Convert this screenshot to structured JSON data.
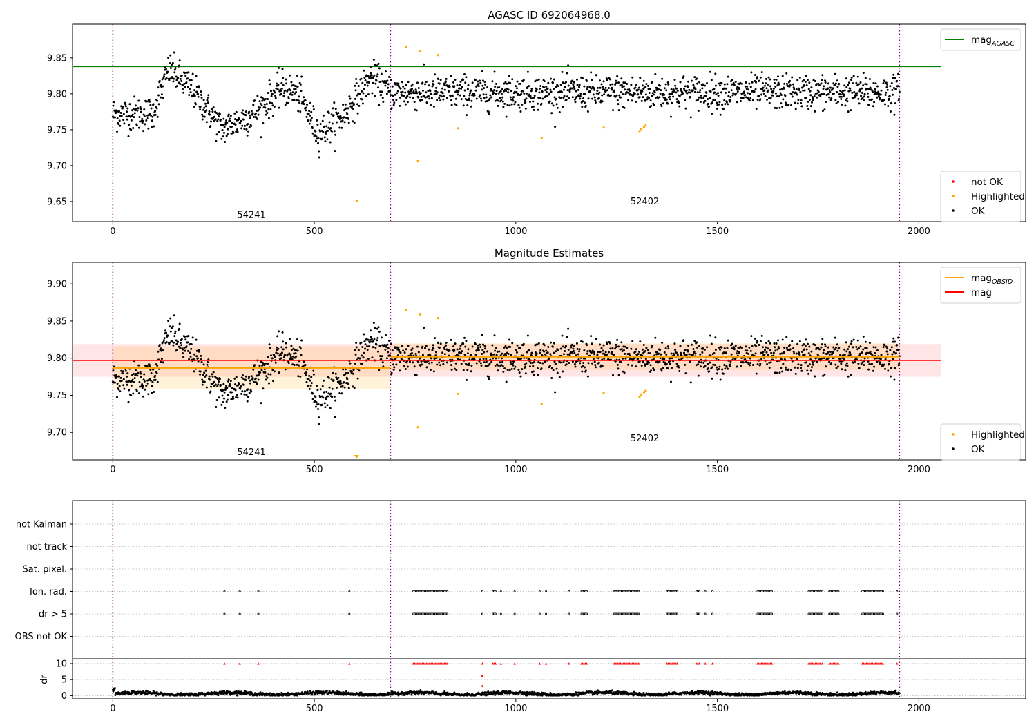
{
  "chart_data": [
    {
      "id": "p1",
      "type": "scatter",
      "title": "AGASC ID 692064968.0",
      "xlim": [
        -100,
        2265
      ],
      "ylim": [
        9.622,
        9.897
      ],
      "yticks": [
        9.65,
        9.7,
        9.75,
        9.8,
        9.85
      ],
      "ytick_labels": [
        "9.65",
        "9.70",
        "9.75",
        "9.80",
        "9.85"
      ],
      "xticks": [
        0,
        500,
        1000,
        1500,
        2000
      ],
      "xtick_labels": [
        "0",
        "500",
        "1000",
        "1500",
        "2000"
      ],
      "obs_boundaries": [
        0,
        689,
        1952
      ],
      "obsids": [
        {
          "label": "54241",
          "x": 344,
          "y": 9.631
        },
        {
          "label": "52402",
          "x": 1320,
          "y": 9.65
        }
      ],
      "hlines": [
        {
          "name": "mag_AGASC",
          "value": 9.838,
          "x0": -100,
          "x1": 2055,
          "color": "#008000"
        }
      ],
      "legend_upper": {
        "placement": "top-right",
        "entries": [
          {
            "label": "mag",
            "sub": "AGASC",
            "color": "#008000",
            "kind": "line"
          }
        ]
      },
      "legend_lower": {
        "placement": "bottom-right",
        "entries": [
          {
            "label": "not OK",
            "color": "#ff0000",
            "kind": "dot"
          },
          {
            "label": "Highlighted",
            "color": "#ffa500",
            "kind": "dot"
          },
          {
            "label": "OK",
            "color": "#000000",
            "kind": "dot"
          }
        ]
      },
      "highlighted": {
        "x": [
          605,
          727,
          763,
          807,
          757,
          857,
          1064,
          1218,
          1307,
          1311,
          1318,
          1322
        ],
        "y": [
          9.651,
          9.865,
          9.859,
          9.854,
          9.707,
          9.752,
          9.738,
          9.753,
          9.748,
          9.751,
          9.754,
          9.756
        ]
      },
      "ok_series": [
        {
          "x": [
            0,
            100
          ],
          "y": [
            9.772,
            9.772
          ]
        },
        {
          "x": [
            100,
            140
          ],
          "y": [
            9.776,
            9.834
          ]
        },
        {
          "x": [
            140,
            200
          ],
          "y": [
            9.834,
            9.804
          ]
        },
        {
          "x": [
            200,
            270
          ],
          "y": [
            9.804,
            9.751
          ]
        },
        {
          "x": [
            270,
            350
          ],
          "y": [
            9.751,
            9.772
          ]
        },
        {
          "x": [
            350,
            420
          ],
          "y": [
            9.772,
            9.808
          ]
        },
        {
          "x": [
            420,
            460
          ],
          "y": [
            9.808,
            9.8
          ]
        },
        {
          "x": [
            460,
            510
          ],
          "y": [
            9.8,
            9.745
          ]
        },
        {
          "x": [
            510,
            570
          ],
          "y": [
            9.745,
            9.768
          ]
        },
        {
          "x": [
            570,
            640
          ],
          "y": [
            9.768,
            9.823
          ]
        },
        {
          "x": [
            640,
            689
          ],
          "y": [
            9.823,
            9.803
          ]
        },
        {
          "x": [
            689,
            1952
          ],
          "y": [
            9.802,
            9.802
          ]
        }
      ],
      "ok_noise": 0.014
    },
    {
      "id": "p2",
      "type": "scatter",
      "title": "Magnitude Estimates",
      "xlim": [
        -100,
        2265
      ],
      "ylim": [
        9.663,
        9.929
      ],
      "yticks": [
        9.7,
        9.75,
        9.8,
        9.85,
        9.9
      ],
      "ytick_labels": [
        "9.70",
        "9.75",
        "9.80",
        "9.85",
        "9.90"
      ],
      "xticks": [
        0,
        500,
        1000,
        1500,
        2000
      ],
      "xtick_labels": [
        "0",
        "500",
        "1000",
        "1500",
        "2000"
      ],
      "obs_boundaries": [
        0,
        689,
        1952
      ],
      "obsids": [
        {
          "label": "54241",
          "x": 344,
          "y": 9.673
        },
        {
          "label": "52402",
          "x": 1320,
          "y": 9.692
        }
      ],
      "mag_obsid": [
        {
          "x0": 0,
          "x1": 689,
          "value": 9.787,
          "band": [
            9.758,
            9.816
          ]
        },
        {
          "x0": 689,
          "x1": 1952,
          "value": 9.802,
          "band": [
            9.784,
            9.82
          ]
        }
      ],
      "mag": {
        "value": 9.797,
        "band": [
          9.775,
          9.819
        ],
        "x0": -100,
        "x1": 2055
      },
      "legend_upper": {
        "placement": "top-right",
        "entries": [
          {
            "label": "mag",
            "sub": "OBSID",
            "color": "#ffa500",
            "kind": "line"
          },
          {
            "label": "mag",
            "sub": "",
            "color": "#ff0000",
            "kind": "line"
          }
        ]
      },
      "legend_lower": {
        "placement": "bottom-right",
        "entries": [
          {
            "label": "Highlighted",
            "color": "#ffa500",
            "kind": "dot"
          },
          {
            "label": "OK",
            "color": "#000000",
            "kind": "dot"
          }
        ]
      },
      "out_of_range_marker": {
        "x": 605,
        "color": "#ffa500"
      },
      "highlighted": {
        "x": [
          727,
          763,
          807,
          757,
          857,
          1064,
          1218,
          1307,
          1311,
          1318,
          1322
        ],
        "y": [
          9.865,
          9.859,
          9.854,
          9.707,
          9.752,
          9.738,
          9.753,
          9.748,
          9.751,
          9.754,
          9.756
        ]
      }
    },
    {
      "id": "p3",
      "type": "scatter",
      "title": "",
      "xlim": [
        -100,
        2265
      ],
      "categories": [
        "not Kalman",
        "not track",
        "Sat. pixel.",
        "Ion. rad.",
        "dr > 5",
        "OBS not OK"
      ],
      "flag_ranges": [
        [
          277,
          277
        ],
        [
          315,
          315
        ],
        [
          361,
          361
        ],
        [
          587,
          587
        ],
        [
          746,
          832
        ],
        [
          917,
          920
        ],
        [
          943,
          950
        ],
        [
          963,
          963
        ],
        [
          997,
          997
        ],
        [
          1059,
          1059
        ],
        [
          1075,
          1075
        ],
        [
          1132,
          1132
        ],
        [
          1163,
          1177
        ],
        [
          1244,
          1306
        ],
        [
          1375,
          1402
        ],
        [
          1449,
          1458
        ],
        [
          1470,
          1472
        ],
        [
          1488,
          1490
        ],
        [
          1600,
          1636
        ],
        [
          1727,
          1756
        ],
        [
          1760,
          1762
        ],
        [
          1778,
          1802
        ],
        [
          1860,
          1914
        ],
        [
          1946,
          1946
        ]
      ],
      "flag_rows": [
        "Ion. rad.",
        "dr > 5"
      ],
      "dr_panel": {
        "ylabel": "dr",
        "ylim": [
          -1,
          11.5
        ],
        "yticks": [
          0,
          5,
          10
        ],
        "ytick_labels": [
          "0",
          "5",
          "10"
        ],
        "clip_value": 10,
        "spikes": [
          {
            "x": 917,
            "y": 6.1
          },
          {
            "x": 917,
            "y": 3.0
          }
        ],
        "baseline": 0.6
      },
      "xticks": [
        0,
        500,
        1000,
        1500,
        2000
      ],
      "xtick_labels": [
        "0",
        "500",
        "1000",
        "1500",
        "2000"
      ],
      "obs_boundaries": [
        0,
        689,
        1952
      ]
    }
  ]
}
